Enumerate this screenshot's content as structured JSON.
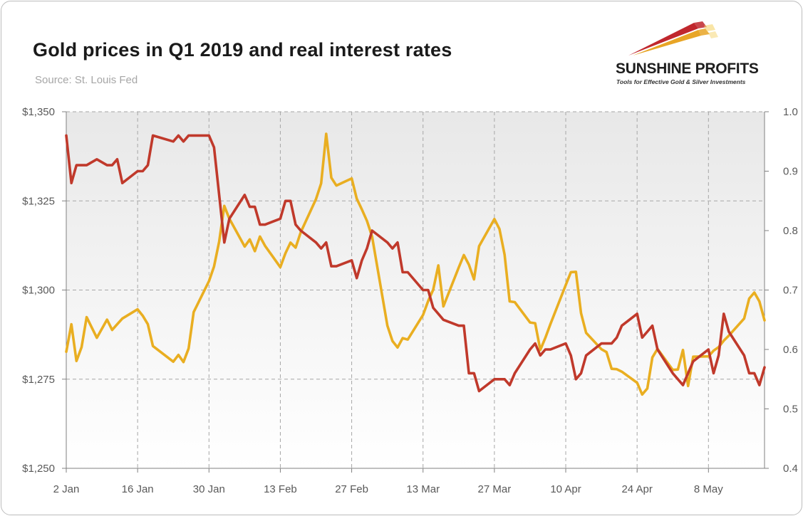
{
  "header": {
    "title": "Gold prices in Q1 2019 and real interest rates",
    "source": "Source: St. Louis Fed"
  },
  "logo": {
    "name": "SUNSHINE PROFITS",
    "tagline": "Tools for Effective Gold & Silver Investments",
    "colors": [
      "#c0272d",
      "#e8a526",
      "#f5d36b"
    ]
  },
  "chart_data": {
    "type": "line",
    "xlabels": [
      "2 Jan",
      "16 Jan",
      "30 Jan",
      "13 Feb",
      "27 Feb",
      "13 Mar",
      "27 Mar",
      "10 Apr",
      "24 Apr",
      "8 May"
    ],
    "left_axis": {
      "ylim": [
        1250,
        1350
      ],
      "ticks": [
        "$1,250",
        "$1,275",
        "$1,300",
        "$1,325",
        "$1,350"
      ]
    },
    "right_axis": {
      "ylim": [
        0.4,
        1.0
      ],
      "ticks": [
        "0.4",
        "0.5",
        "0.6",
        "0.7",
        "0.8",
        "0.9",
        "1.0"
      ]
    },
    "grid": true,
    "series": [
      {
        "axis": "left",
        "color": "#e9ae21",
        "x": [
          0,
          1,
          2,
          3,
          4,
          6,
          8,
          9,
          10,
          11,
          14,
          15,
          16,
          17,
          21,
          22,
          23,
          24,
          25,
          28,
          29,
          30,
          31,
          32,
          35,
          36,
          37,
          38,
          39,
          42,
          43,
          44,
          45,
          46,
          49,
          50,
          51,
          52,
          53,
          56,
          57,
          58,
          59,
          60,
          63,
          64,
          65,
          66,
          67,
          70,
          71,
          72,
          73,
          74,
          77,
          78,
          79,
          80,
          81,
          84,
          85,
          86,
          87,
          88,
          91,
          92,
          93,
          94,
          95,
          98,
          99,
          100,
          101,
          102,
          105,
          106,
          107,
          108,
          109,
          112,
          113,
          114,
          115,
          116,
          119,
          120,
          121,
          122,
          123,
          126,
          127,
          128,
          129,
          130,
          133,
          134,
          135,
          136,
          137
        ],
        "y": [
          1282.7,
          1290.4,
          1280.1,
          1284.0,
          1292.4,
          1286.6,
          1291.7,
          1288.8,
          1290.4,
          1292.0,
          1294.6,
          1292.8,
          1290.4,
          1284.3,
          1279.9,
          1281.8,
          1279.8,
          1283.6,
          1293.8,
          1302.5,
          1306.6,
          1313.6,
          1323.6,
          1320.0,
          1312.2,
          1314.2,
          1310.9,
          1315.0,
          1312.4,
          1306.4,
          1310.3,
          1313.3,
          1311.9,
          1316.2,
          1325.5,
          1329.9,
          1343.8,
          1331.5,
          1329.3,
          1331.3,
          1325.6,
          1322.6,
          1319.4,
          1315.0,
          1290.0,
          1285.7,
          1283.9,
          1286.5,
          1286.1,
          1293.0,
          1296.9,
          1300.1,
          1306.9,
          1295.4,
          1306.3,
          1309.8,
          1307.1,
          1303.0,
          1312.3,
          1319.9,
          1317.1,
          1309.9,
          1296.8,
          1296.6,
          1290.9,
          1290.7,
          1283.2,
          1286.6,
          1290.5,
          1301.4,
          1305.0,
          1305.1,
          1293.5,
          1288.0,
          1283.4,
          1282.6,
          1277.9,
          1277.8,
          1277.1,
          1274.0,
          1270.7,
          1272.4,
          1281.1,
          1283.5,
          1277.6,
          1277.7,
          1283.2,
          1273.1,
          1281.3,
          1281.4,
          1283.0,
          1284.0,
          1285.8,
          1287.2,
          1292.0,
          1297.6,
          1299.3,
          1296.8,
          1291.5
        ]
      },
      {
        "axis": "right",
        "color": "#c0392b",
        "x": [
          0,
          1,
          2,
          3,
          4,
          6,
          8,
          9,
          10,
          11,
          14,
          15,
          16,
          17,
          21,
          22,
          23,
          24,
          25,
          28,
          29,
          30,
          31,
          32,
          35,
          36,
          37,
          38,
          39,
          42,
          43,
          44,
          45,
          46,
          49,
          50,
          51,
          52,
          53,
          56,
          57,
          58,
          59,
          60,
          63,
          64,
          65,
          66,
          67,
          70,
          71,
          72,
          73,
          74,
          77,
          78,
          79,
          80,
          81,
          84,
          85,
          86,
          87,
          88,
          91,
          92,
          93,
          94,
          95,
          98,
          99,
          100,
          101,
          102,
          105,
          106,
          107,
          108,
          109,
          112,
          113,
          114,
          115,
          116,
          119,
          120,
          121,
          122,
          123,
          126,
          127,
          128,
          129,
          130,
          133,
          134,
          135,
          136,
          137
        ],
        "y": [
          0.96,
          0.88,
          0.91,
          0.91,
          0.91,
          0.92,
          0.91,
          0.91,
          0.92,
          0.88,
          0.9,
          0.9,
          0.91,
          0.96,
          0.95,
          0.96,
          0.95,
          0.96,
          0.96,
          0.96,
          0.94,
          0.86,
          0.78,
          0.82,
          0.86,
          0.84,
          0.84,
          0.81,
          0.81,
          0.82,
          0.85,
          0.85,
          0.81,
          0.8,
          0.78,
          0.77,
          0.78,
          0.74,
          0.74,
          0.75,
          0.72,
          0.75,
          0.77,
          0.8,
          0.78,
          0.77,
          0.78,
          0.73,
          0.73,
          0.7,
          0.7,
          0.67,
          0.66,
          0.65,
          0.64,
          0.64,
          0.56,
          0.56,
          0.53,
          0.55,
          0.55,
          0.55,
          0.54,
          0.56,
          0.6,
          0.61,
          0.59,
          0.6,
          0.6,
          0.61,
          0.59,
          0.55,
          0.56,
          0.59,
          0.61,
          0.61,
          0.61,
          0.62,
          0.64,
          0.66,
          0.62,
          0.63,
          0.64,
          0.6,
          0.56,
          0.55,
          0.54,
          0.56,
          0.58,
          0.6,
          0.56,
          0.59,
          0.66,
          0.63,
          0.59,
          0.56,
          0.56,
          0.54,
          0.57
        ]
      }
    ],
    "x_range": [
      0,
      137
    ],
    "x_ticks": [
      0,
      14,
      28,
      42,
      56,
      70,
      84,
      98,
      112,
      126
    ]
  }
}
